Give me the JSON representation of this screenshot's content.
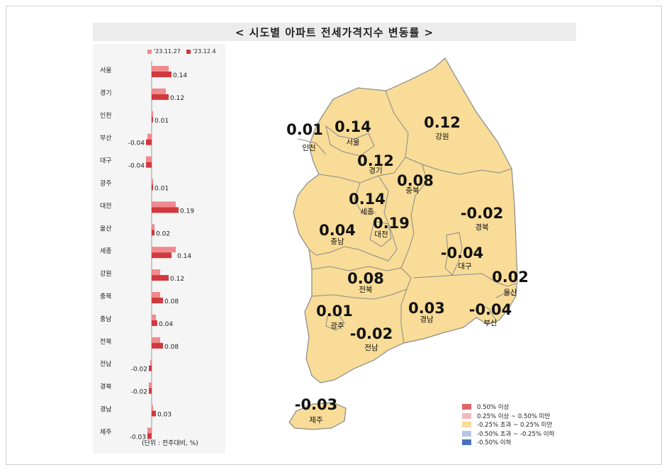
{
  "title": "< 시도별 아파트 전세가격지수 변동률 >",
  "unit_note": "(단위 : 전주대비, %)",
  "colors": {
    "series1": "#f08a8e",
    "series2": "#d0393f",
    "map_fill": "#f8dc97",
    "map_stroke": "#8a8a8a",
    "panel_bg": "#f5f5f5"
  },
  "chart_data": {
    "type": "bar",
    "orientation": "horizontal",
    "categories": [
      "서울",
      "경기",
      "인천",
      "부산",
      "대구",
      "광주",
      "대전",
      "울산",
      "세종",
      "강원",
      "충북",
      "충남",
      "전북",
      "전남",
      "경북",
      "경남",
      "제주"
    ],
    "series": [
      {
        "name": "'23.11.27",
        "values": [
          0.12,
          0.1,
          0.01,
          -0.03,
          -0.04,
          0.01,
          0.17,
          0.02,
          0.17,
          0.06,
          0.06,
          0.03,
          0.06,
          -0.01,
          -0.02,
          0.01,
          -0.03
        ]
      },
      {
        "name": "'23.12.4",
        "values": [
          0.14,
          0.12,
          0.01,
          -0.04,
          -0.04,
          0.01,
          0.19,
          0.02,
          0.14,
          0.12,
          0.08,
          0.04,
          0.08,
          -0.02,
          -0.02,
          0.03,
          -0.03
        ]
      }
    ],
    "value_labels": [
      "0.14",
      "0.12",
      "0.01",
      "-0.04",
      "-0.04",
      "0.01",
      "0.19",
      "0.02",
      "0.14",
      "0.12",
      "0.08",
      "0.04",
      "0.08",
      "-0.02",
      "-0.02",
      "0.03",
      "-0.03"
    ]
  },
  "map": {
    "regions": [
      {
        "name": "인천",
        "value": "0.01"
      },
      {
        "name": "서울",
        "value": "0.14"
      },
      {
        "name": "경기",
        "value": "0.12"
      },
      {
        "name": "강원",
        "value": "0.12"
      },
      {
        "name": "충북",
        "value": "0.08"
      },
      {
        "name": "세종",
        "value": "0.14"
      },
      {
        "name": "대전",
        "value": "0.19"
      },
      {
        "name": "충남",
        "value": "0.04"
      },
      {
        "name": "경북",
        "value": "-0.02"
      },
      {
        "name": "대구",
        "value": "-0.04"
      },
      {
        "name": "울산",
        "value": "0.02"
      },
      {
        "name": "전북",
        "value": "0.08"
      },
      {
        "name": "광주",
        "value": "0.01"
      },
      {
        "name": "경남",
        "value": "0.03"
      },
      {
        "name": "부산",
        "value": "-0.04"
      },
      {
        "name": "전남",
        "value": "-0.02"
      },
      {
        "name": "제주",
        "value": "-0.03"
      }
    ],
    "legend": [
      {
        "label": "0.50% 이상",
        "color": "#e0666a"
      },
      {
        "label": "0.25% 이상 ~ 0.50% 미만",
        "color": "#f5b8bb"
      },
      {
        "label": "-0.25% 초과 ~ 0.25% 미만",
        "color": "#f8dc97"
      },
      {
        "label": "-0.50% 초과 ~ -0.25% 이하",
        "color": "#b8c4e6"
      },
      {
        "label": "-0.50% 이하",
        "color": "#4a72c0"
      }
    ]
  }
}
